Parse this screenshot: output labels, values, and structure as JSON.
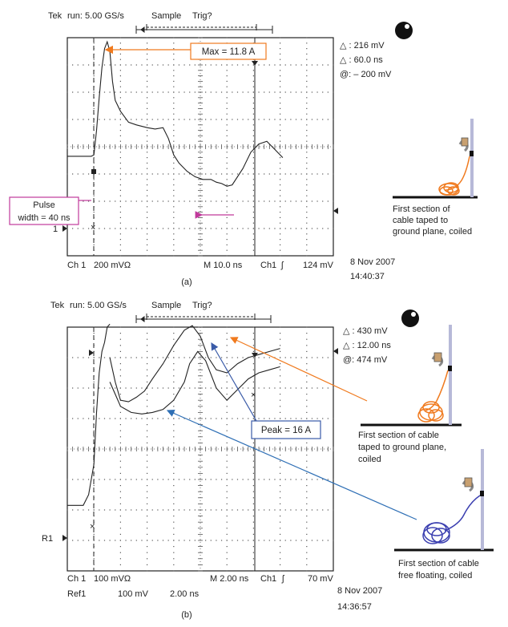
{
  "panels": [
    {
      "header": {
        "brand": "Tek",
        "status": "run: 5.00 GS/s",
        "mode": "Sample",
        "trig": "Trig?"
      },
      "readouts": [
        "△ : 216 mV",
        "△ : 60.0 ns",
        "@: – 200 mV"
      ],
      "callouts": [
        "Max = 11.8 A",
        "Pulse",
        "width = 40 ns"
      ],
      "channel_marker": "1",
      "scale_line": {
        "ch": "Ch 1",
        "volts": "200 mVΩ",
        "time": "M 10.0 ns",
        "trig_ch": "Ch1",
        "trig_slope": "ʃ",
        "trig_level": "124 mV"
      },
      "date": "8 Nov 2007",
      "time": "14:40:37",
      "caption": "(a)",
      "setup_label": [
        "First section of",
        "cable taped to",
        "ground plane, coiled"
      ],
      "trace_color": "#222222",
      "cable_color": "#f07a1e"
    },
    {
      "header": {
        "brand": "Tek",
        "status": "run: 5.00 GS/s",
        "mode": "Sample",
        "trig": "Trig?"
      },
      "readouts": [
        "△ : 430 mV",
        "△ : 12.00 ns",
        "@: 474 mV"
      ],
      "callouts": [
        "Peak = 16 A"
      ],
      "channel_marker": "R1",
      "scale_line": {
        "ch": "Ch 1",
        "volts": "100 mVΩ",
        "time": "M 2.00 ns",
        "trig_ch": "Ch1",
        "trig_slope": "ʃ",
        "trig_level": "70 mV"
      },
      "ref_line": {
        "ref": "Ref1",
        "volts": "100 mV",
        "time": "2.00 ns"
      },
      "date": "8 Nov 2007",
      "time": "14:36:57",
      "caption": "(b)",
      "setup_labels": [
        [
          "First section of cable",
          "taped to ground plane,",
          "coiled"
        ],
        [
          "First section of cable",
          "free floating, coiled"
        ]
      ],
      "arrow_colors": {
        "orange": "#f07a1e",
        "blue": "#2e6fb5",
        "peak_box": "#3a5ba8"
      },
      "cable_colors": [
        "#f07a1e",
        "#3b3fb0"
      ]
    }
  ],
  "chart_data": [
    {
      "type": "line",
      "title": "",
      "xlabel": "",
      "ylabel": "",
      "grid": "10x8 divisions",
      "series": [
        {
          "points_div": [
            [
              0,
              -0.35
            ],
            [
              0.9,
              -0.35
            ],
            [
              1.0,
              -0.3
            ],
            [
              1.1,
              0.6
            ],
            [
              1.2,
              1.8
            ],
            [
              1.3,
              2.9
            ],
            [
              1.4,
              3.6
            ],
            [
              1.5,
              3.85
            ],
            [
              1.6,
              3.5
            ],
            [
              1.7,
              2.4
            ],
            [
              1.8,
              1.7
            ],
            [
              2.0,
              1.3
            ],
            [
              2.3,
              0.9
            ],
            [
              2.6,
              0.8
            ],
            [
              3.0,
              0.7
            ],
            [
              3.3,
              0.65
            ],
            [
              3.6,
              0.7
            ],
            [
              3.8,
              0.3
            ],
            [
              4.0,
              -0.3
            ],
            [
              4.2,
              -0.6
            ],
            [
              4.5,
              -0.9
            ],
            [
              4.8,
              -1.1
            ],
            [
              5.1,
              -1.2
            ],
            [
              5.4,
              -1.2
            ],
            [
              5.6,
              -1.3
            ],
            [
              5.8,
              -1.35
            ],
            [
              6.0,
              -1.45
            ],
            [
              6.2,
              -1.4
            ],
            [
              6.6,
              -0.8
            ],
            [
              6.9,
              -0.2
            ],
            [
              7.2,
              0.1
            ],
            [
              7.5,
              0.2
            ],
            [
              7.8,
              -0.1
            ],
            [
              8.1,
              -0.4
            ]
          ]
        }
      ]
    },
    {
      "type": "line",
      "title": "",
      "xlabel": "",
      "ylabel": "",
      "grid": "10x8 divisions",
      "series": [
        {
          "points_div": [
            [
              0,
              -1.85
            ],
            [
              0.6,
              -1.85
            ],
            [
              0.8,
              -1.5
            ],
            [
              1.0,
              -0.5
            ],
            [
              1.1,
              1.2
            ],
            [
              1.2,
              2.5
            ],
            [
              1.3,
              3.2
            ],
            [
              1.4,
              3.5
            ],
            [
              1.5,
              4.0
            ],
            [
              1.6,
              4.1
            ]
          ]
        },
        {
          "points_div": [
            [
              1.6,
              2.2
            ],
            [
              1.8,
              1.8
            ],
            [
              2.0,
              1.4
            ],
            [
              2.4,
              1.2
            ],
            [
              2.8,
              1.15
            ],
            [
              3.2,
              1.2
            ],
            [
              3.6,
              1.3
            ],
            [
              4.0,
              1.6
            ],
            [
              4.4,
              2.2
            ],
            [
              4.6,
              2.8
            ],
            [
              4.9,
              3.2
            ],
            [
              5.2,
              2.9
            ],
            [
              5.6,
              2.0
            ],
            [
              6.0,
              1.6
            ],
            [
              6.4,
              1.95
            ],
            [
              6.8,
              2.3
            ],
            [
              7.2,
              2.5
            ],
            [
              7.6,
              2.6
            ],
            [
              8.0,
              2.7
            ]
          ]
        },
        {
          "points_div": [
            [
              1.6,
              3.0
            ],
            [
              1.8,
              2.2
            ],
            [
              2.0,
              1.6
            ],
            [
              2.3,
              1.55
            ],
            [
              2.6,
              1.7
            ],
            [
              2.9,
              1.9
            ],
            [
              3.2,
              2.3
            ],
            [
              3.6,
              2.8
            ],
            [
              4.0,
              3.4
            ],
            [
              4.4,
              3.9
            ],
            [
              4.7,
              4.05
            ],
            [
              5.0,
              3.7
            ],
            [
              5.3,
              3.0
            ],
            [
              5.6,
              2.6
            ],
            [
              6.0,
              2.5
            ],
            [
              6.4,
              2.8
            ],
            [
              6.8,
              3.0
            ],
            [
              7.2,
              3.1
            ],
            [
              7.6,
              3.2
            ],
            [
              8.0,
              3.3
            ]
          ]
        }
      ]
    }
  ]
}
